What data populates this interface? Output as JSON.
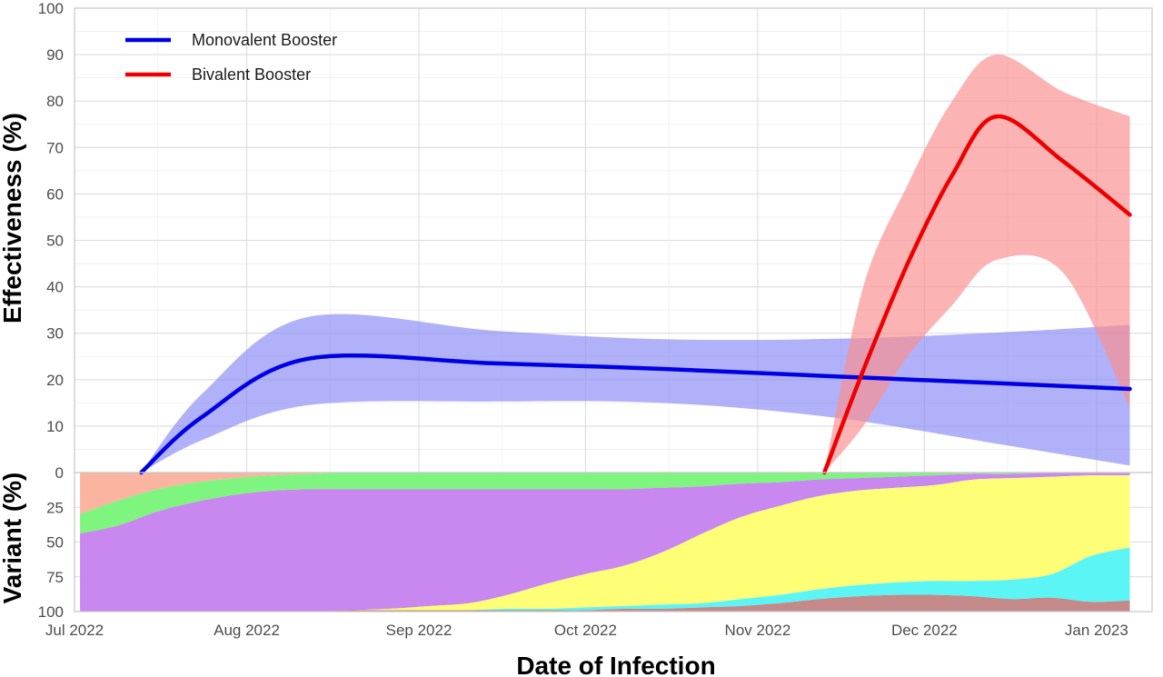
{
  "chart_data": {
    "type": "line",
    "x_axis": {
      "label": "Date of Infection",
      "domain": [
        "2022-07-01",
        "2023-01-11"
      ],
      "ticks": [
        {
          "date": "2022-07-01",
          "label": "Jul 2022"
        },
        {
          "date": "2022-08-01",
          "label": "Aug 2022"
        },
        {
          "date": "2022-09-01",
          "label": "Sep 2022"
        },
        {
          "date": "2022-10-01",
          "label": "Oct 2022"
        },
        {
          "date": "2022-11-01",
          "label": "Nov 2022"
        },
        {
          "date": "2022-12-01",
          "label": "Dec 2022"
        },
        {
          "date": "2023-01-01",
          "label": "Jan 2023"
        }
      ]
    },
    "effectiveness_panel": {
      "ylabel": "Effectiveness (%)",
      "ylim": [
        0,
        100
      ],
      "ticks": [
        "0",
        "10",
        "20",
        "30",
        "40",
        "50",
        "60",
        "70",
        "80",
        "90",
        "100"
      ],
      "grid": true,
      "legend_position": "top-left",
      "series": [
        {
          "name": "Monovalent Booster",
          "color": "#0000e6",
          "band_color": "#8a8cf6",
          "points": [
            {
              "x": "2022-07-13",
              "y": 0,
              "lo": 0,
              "hi": 0
            },
            {
              "x": "2022-07-24",
              "y": 12,
              "lo": 7,
              "hi": 17
            },
            {
              "x": "2022-08-12",
              "y": 24.5,
              "lo": 14.5,
              "hi": 33.5
            },
            {
              "x": "2022-09-15",
              "y": 23.5,
              "lo": 15.3,
              "hi": 30.5
            },
            {
              "x": "2022-10-15",
              "y": 22.3,
              "lo": 15,
              "hi": 28.7
            },
            {
              "x": "2022-11-15",
              "y": 20.7,
              "lo": 11.8,
              "hi": 28.8
            },
            {
              "x": "2022-12-15",
              "y": 19.2,
              "lo": 6,
              "hi": 30.2
            },
            {
              "x": "2023-01-07",
              "y": 18,
              "lo": 1.5,
              "hi": 31.8
            }
          ]
        },
        {
          "name": "Bivalent Booster",
          "color": "#ee0000",
          "band_color": "#fb8f8f",
          "points": [
            {
              "x": "2022-11-13",
              "y": 0,
              "lo": 0,
              "hi": 0
            },
            {
              "x": "2022-11-20",
              "y": 22,
              "lo": 10,
              "hi": 40
            },
            {
              "x": "2022-11-28",
              "y": 45,
              "lo": 25,
              "hi": 62
            },
            {
              "x": "2022-12-06",
              "y": 64,
              "lo": 36,
              "hi": 80
            },
            {
              "x": "2022-12-14",
              "y": 76.7,
              "lo": 45.8,
              "hi": 90
            },
            {
              "x": "2022-12-26",
              "y": 67,
              "lo": 43,
              "hi": 82
            },
            {
              "x": "2023-01-07",
              "y": 55.5,
              "lo": 14,
              "hi": 76.7
            }
          ]
        }
      ]
    },
    "variant_panel": {
      "ylabel": "Variant (%)",
      "ylim": [
        0,
        100
      ],
      "ticks": [
        "0",
        "25",
        "50",
        "75",
        "100"
      ],
      "stacked": true,
      "x": [
        "2022-07-02",
        "2022-07-09",
        "2022-07-16",
        "2022-07-23",
        "2022-07-30",
        "2022-08-06",
        "2022-08-13",
        "2022-08-20",
        "2022-08-27",
        "2022-09-03",
        "2022-09-10",
        "2022-09-17",
        "2022-09-24",
        "2022-10-01",
        "2022-10-08",
        "2022-10-15",
        "2022-10-22",
        "2022-10-29",
        "2022-11-05",
        "2022-11-12",
        "2022-11-19",
        "2022-11-26",
        "2022-12-03",
        "2022-12-10",
        "2022-12-17",
        "2022-12-24",
        "2022-12-31",
        "2023-01-07"
      ],
      "series": [
        {
          "color": "#fbb4a0",
          "values": [
            30,
            20,
            12,
            7,
            4,
            2,
            1,
            0,
            0,
            0,
            0,
            0,
            0,
            0,
            0,
            0,
            0,
            0,
            0,
            0,
            0,
            0,
            0,
            0,
            0,
            0,
            0,
            0
          ]
        },
        {
          "color": "#7ef57e",
          "values": [
            14,
            18,
            16,
            14,
            12,
            11,
            11,
            12,
            12,
            12,
            12,
            12,
            12,
            12,
            12,
            11,
            10,
            8,
            7,
            5,
            4,
            3,
            2,
            1,
            1,
            0,
            0,
            0
          ]
        },
        {
          "color": "#c987f0",
          "values": [
            56,
            62,
            72,
            79,
            84,
            87,
            88,
            87,
            86,
            84,
            82,
            76,
            68,
            61,
            55,
            46,
            34,
            24,
            17,
            12,
            9,
            8,
            7,
            4,
            3,
            3,
            2,
            2
          ]
        },
        {
          "color": "#ffff77",
          "values": [
            0,
            0,
            0,
            0,
            0,
            0,
            0,
            0,
            1,
            3,
            5,
            10,
            18,
            24,
            29,
            38,
            50,
            59,
            64,
            67,
            68,
            68,
            69,
            73,
            73,
            70,
            58,
            52
          ]
        },
        {
          "color": "#5cf5f5",
          "values": [
            0,
            0,
            0,
            0,
            0,
            0,
            0,
            0,
            0,
            0,
            0,
            1,
            1,
            2,
            2,
            3,
            3,
            5,
            6,
            7,
            8,
            9,
            10,
            11,
            14,
            17,
            33,
            38
          ]
        },
        {
          "color": "#c48a8a",
          "values": [
            0,
            0,
            0,
            0,
            0,
            0,
            0,
            1,
            1,
            1,
            1,
            1,
            1,
            1,
            2,
            2,
            3,
            4,
            6,
            9,
            11,
            12,
            12,
            11,
            9,
            10,
            7,
            8
          ]
        }
      ]
    }
  }
}
